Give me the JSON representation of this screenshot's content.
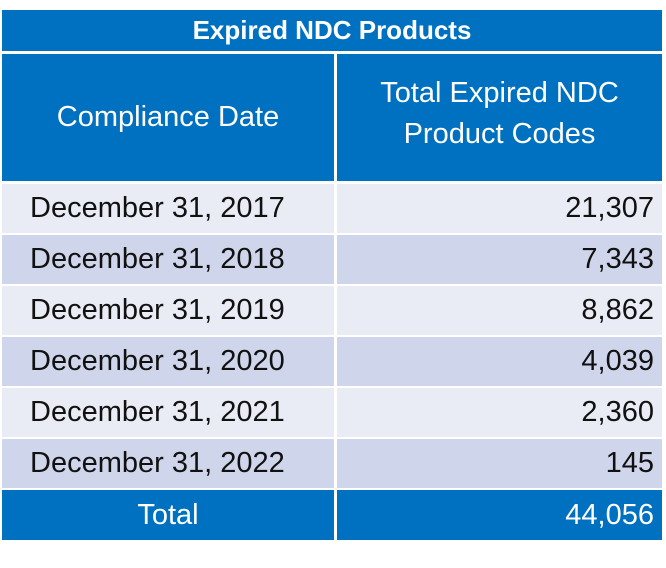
{
  "table": {
    "title": "Expired NDC Products",
    "headers": {
      "date": "Compliance Date",
      "count": "Total Expired NDC Product Codes"
    },
    "rows": [
      {
        "date": "December 31, 2017",
        "count": "21,307"
      },
      {
        "date": "December 31, 2018",
        "count": "7,343"
      },
      {
        "date": "December 31, 2019",
        "count": "8,862"
      },
      {
        "date": "December 31, 2020",
        "count": "4,039"
      },
      {
        "date": "December 31, 2021",
        "count": "2,360"
      },
      {
        "date": "December 31, 2022",
        "count": "145"
      }
    ],
    "total": {
      "label": "Total",
      "value": "44,056"
    }
  },
  "colors": {
    "header_blue": "#0070c0",
    "row_light": "#e9ecf5",
    "row_dark": "#cfd5ea"
  }
}
